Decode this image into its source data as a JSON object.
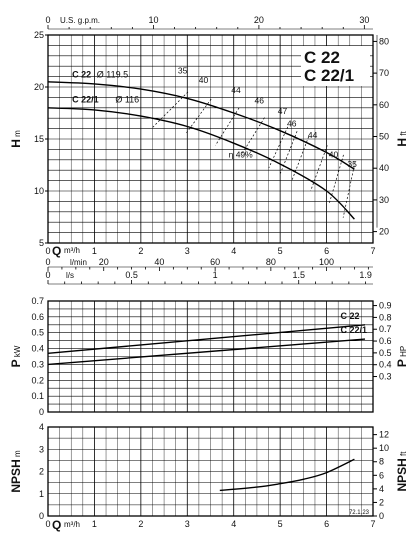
{
  "chart_data": [
    {
      "type": "line",
      "model_labels": [
        "C 22",
        "C 22/1"
      ],
      "ylabel": "H",
      "ylabel_unit": "m",
      "y2label": "H",
      "y2label_unit": "ft",
      "xlabel_top": "U.S. g.p.m.",
      "x": [
        0,
        1,
        2,
        3,
        4,
        5,
        6,
        6.6
      ],
      "xlim": [
        0,
        7
      ],
      "ylim": [
        5,
        25
      ],
      "xticks_m3h": [
        "0",
        "1",
        "2",
        "3",
        "4",
        "5",
        "6",
        "7"
      ],
      "xticks_gpm": [
        "0",
        "10",
        "20",
        "30"
      ],
      "yticks": [
        "5",
        "10",
        "15",
        "20",
        "25"
      ],
      "y2ticks": [
        "20",
        "30",
        "40",
        "50",
        "60",
        "70",
        "80"
      ],
      "series": [
        {
          "name": "C 22",
          "impeller": "Ø 119.5",
          "values": [
            20.5,
            20.3,
            19.8,
            18.9,
            17.5,
            15.8,
            13.7,
            12.1
          ]
        },
        {
          "name": "C 22/1",
          "impeller": "Ø 116",
          "values": [
            18.0,
            17.8,
            17.2,
            16.2,
            14.6,
            12.6,
            10.0,
            7.3
          ]
        }
      ],
      "efficiency_labels": [
        "35",
        "40",
        "44",
        "46",
        "47",
        "46",
        "44",
        "40",
        "35"
      ],
      "efficiency_peak_label": "η 49%",
      "efficiency_lines": [
        {
          "label": "35",
          "q": [
            2.3,
            2.95
          ]
        },
        {
          "label": "40",
          "q": [
            3.0,
            3.45
          ]
        },
        {
          "label": "44",
          "q": [
            3.65,
            4.05
          ]
        },
        {
          "label": "46",
          "q": [
            4.2,
            4.6
          ]
        },
        {
          "label": "47",
          "q": [
            4.8,
            5.1
          ]
        },
        {
          "label": "49",
          "q": [
            5.05,
            5.3
          ]
        },
        {
          "label": "46",
          "q": [
            5.3,
            5.55
          ]
        },
        {
          "label": "44",
          "q": [
            5.7,
            5.95
          ]
        },
        {
          "label": "40",
          "q": [
            6.1,
            6.3
          ]
        },
        {
          "label": "35",
          "q": [
            6.4,
            6.55
          ]
        }
      ]
    },
    {
      "type": "line",
      "ylabel": "P",
      "ylabel_unit": "kW",
      "y2label": "P",
      "y2label_unit": "HP",
      "x": [
        0,
        7
      ],
      "xlim": [
        0,
        7
      ],
      "ylim": [
        0,
        0.7
      ],
      "xticks_lmin": [
        "0",
        "l/min",
        "20",
        "40",
        "60",
        "80",
        "100"
      ],
      "xticks_ls": [
        "0",
        "l/s",
        "0.5",
        "1",
        "1.5",
        "1.9"
      ],
      "yticks": [
        "0",
        "0.1",
        "0.2",
        "0.3",
        "0.4",
        "0.5",
        "0.6",
        "0.7"
      ],
      "y2ticks": [
        "0.3",
        "0.4",
        "0.5",
        "0.6",
        "0.7",
        "0.8",
        "0.9"
      ],
      "series": [
        {
          "name": "C 22",
          "values": [
            0.37,
            0.55
          ]
        },
        {
          "name": "C 22/1",
          "values": [
            0.3,
            0.46
          ]
        }
      ]
    },
    {
      "type": "line",
      "ylabel": "NPSH",
      "ylabel_unit": "m",
      "y2label": "NPSH",
      "y2label_unit": "ft",
      "xlabel": "Q",
      "xlabel_unit": "m³/h",
      "x": [
        3.7,
        4.5,
        5.0,
        5.5,
        6.0,
        6.6
      ],
      "xlim": [
        0,
        7
      ],
      "ylim": [
        0,
        4
      ],
      "xticks": [
        "0",
        "1",
        "2",
        "3",
        "4",
        "5",
        "6",
        "7"
      ],
      "yticks": [
        "0",
        "1",
        "2",
        "3",
        "4"
      ],
      "y2ticks": [
        "0",
        "2",
        "4",
        "6",
        "8",
        "10",
        "12"
      ],
      "series": [
        {
          "name": "",
          "values": [
            1.15,
            1.3,
            1.45,
            1.65,
            1.95,
            2.55
          ]
        }
      ],
      "footnote": "72.1.23"
    }
  ]
}
